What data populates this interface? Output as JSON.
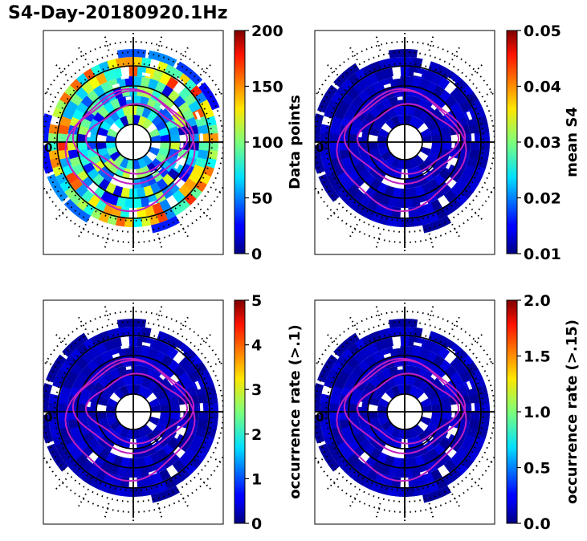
{
  "figure_title": "S4-Day-20180920.1Hz",
  "chart_data": [
    {
      "type": "heatmap",
      "subtype": "polar",
      "panel": "top-left",
      "colormap": "jet",
      "colorbar": {
        "label": "Data points",
        "range": [
          0,
          200
        ],
        "ticks": [
          "0",
          "50",
          "100",
          "150",
          "200"
        ],
        "tick_values": [
          0,
          50,
          100,
          150,
          200
        ]
      },
      "axis_label": "0",
      "overlay": "magenta latitude contours"
    },
    {
      "type": "heatmap",
      "subtype": "polar",
      "panel": "top-right",
      "colormap": "jet",
      "colorbar": {
        "label": "mean S4",
        "range": [
          0.01,
          0.05
        ],
        "ticks": [
          "0.01",
          "0.02",
          "0.03",
          "0.04",
          "0.05"
        ],
        "tick_values": [
          0.01,
          0.02,
          0.03,
          0.04,
          0.05
        ]
      },
      "axis_label": "0",
      "overlay": "magenta latitude contours"
    },
    {
      "type": "heatmap",
      "subtype": "polar",
      "panel": "bottom-left",
      "colormap": "jet",
      "colorbar": {
        "label": "occurrence rate (>.1)",
        "range": [
          0,
          5
        ],
        "ticks": [
          "0",
          "1",
          "2",
          "3",
          "4",
          "5"
        ],
        "tick_values": [
          0,
          1,
          2,
          3,
          4,
          5
        ]
      },
      "axis_label": "0",
      "overlay": "magenta latitude contours"
    },
    {
      "type": "heatmap",
      "subtype": "polar",
      "panel": "bottom-right",
      "colormap": "jet",
      "colorbar": {
        "label": "occurrence rate (>.15)",
        "range": [
          0,
          2
        ],
        "ticks": [
          "0.0",
          "0.5",
          "1.0",
          "1.5",
          "2.0"
        ],
        "tick_values": [
          0,
          0.5,
          1.0,
          1.5,
          2.0
        ]
      },
      "axis_label": "0",
      "overlay": "magenta latitude contours"
    }
  ]
}
